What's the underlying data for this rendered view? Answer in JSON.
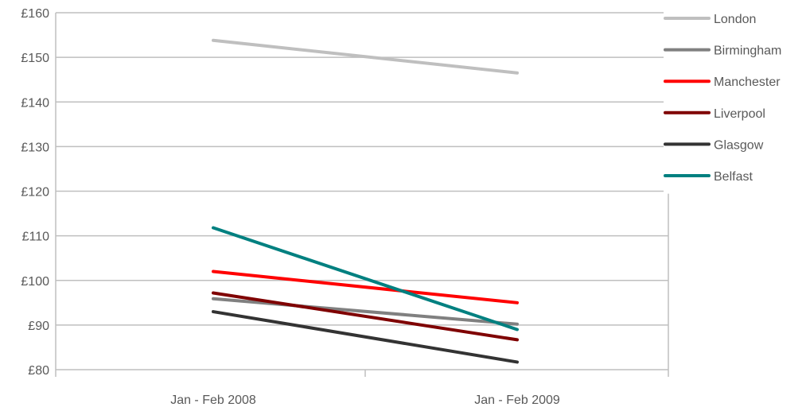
{
  "chart_data": {
    "type": "line",
    "title": "",
    "xlabel": "",
    "ylabel": "",
    "categories": [
      "Jan - Feb 2008",
      "Jan - Feb 2009"
    ],
    "y_tick_labels": [
      "£80",
      "£90",
      "£100",
      "£110",
      "£120",
      "£130",
      "£140",
      "£150",
      "£160"
    ],
    "y_tick_values": [
      80,
      90,
      100,
      110,
      120,
      130,
      140,
      150,
      160
    ],
    "ylim": [
      80,
      160
    ],
    "grid": true,
    "legend_position": "right",
    "series": [
      {
        "name": "London",
        "values": [
          153.8,
          146.5
        ],
        "color": "#bfbfbf"
      },
      {
        "name": "Birmingham",
        "values": [
          95.9,
          90.2
        ],
        "color": "#808080"
      },
      {
        "name": "Manchester",
        "values": [
          102.0,
          95.0
        ],
        "color": "#ff0000"
      },
      {
        "name": "Liverpool",
        "values": [
          97.2,
          86.7
        ],
        "color": "#7f0000"
      },
      {
        "name": "Glasgow",
        "values": [
          93.0,
          81.7
        ],
        "color": "#333333"
      },
      {
        "name": "Belfast",
        "values": [
          111.8,
          89.0
        ],
        "color": "#008080"
      }
    ]
  }
}
